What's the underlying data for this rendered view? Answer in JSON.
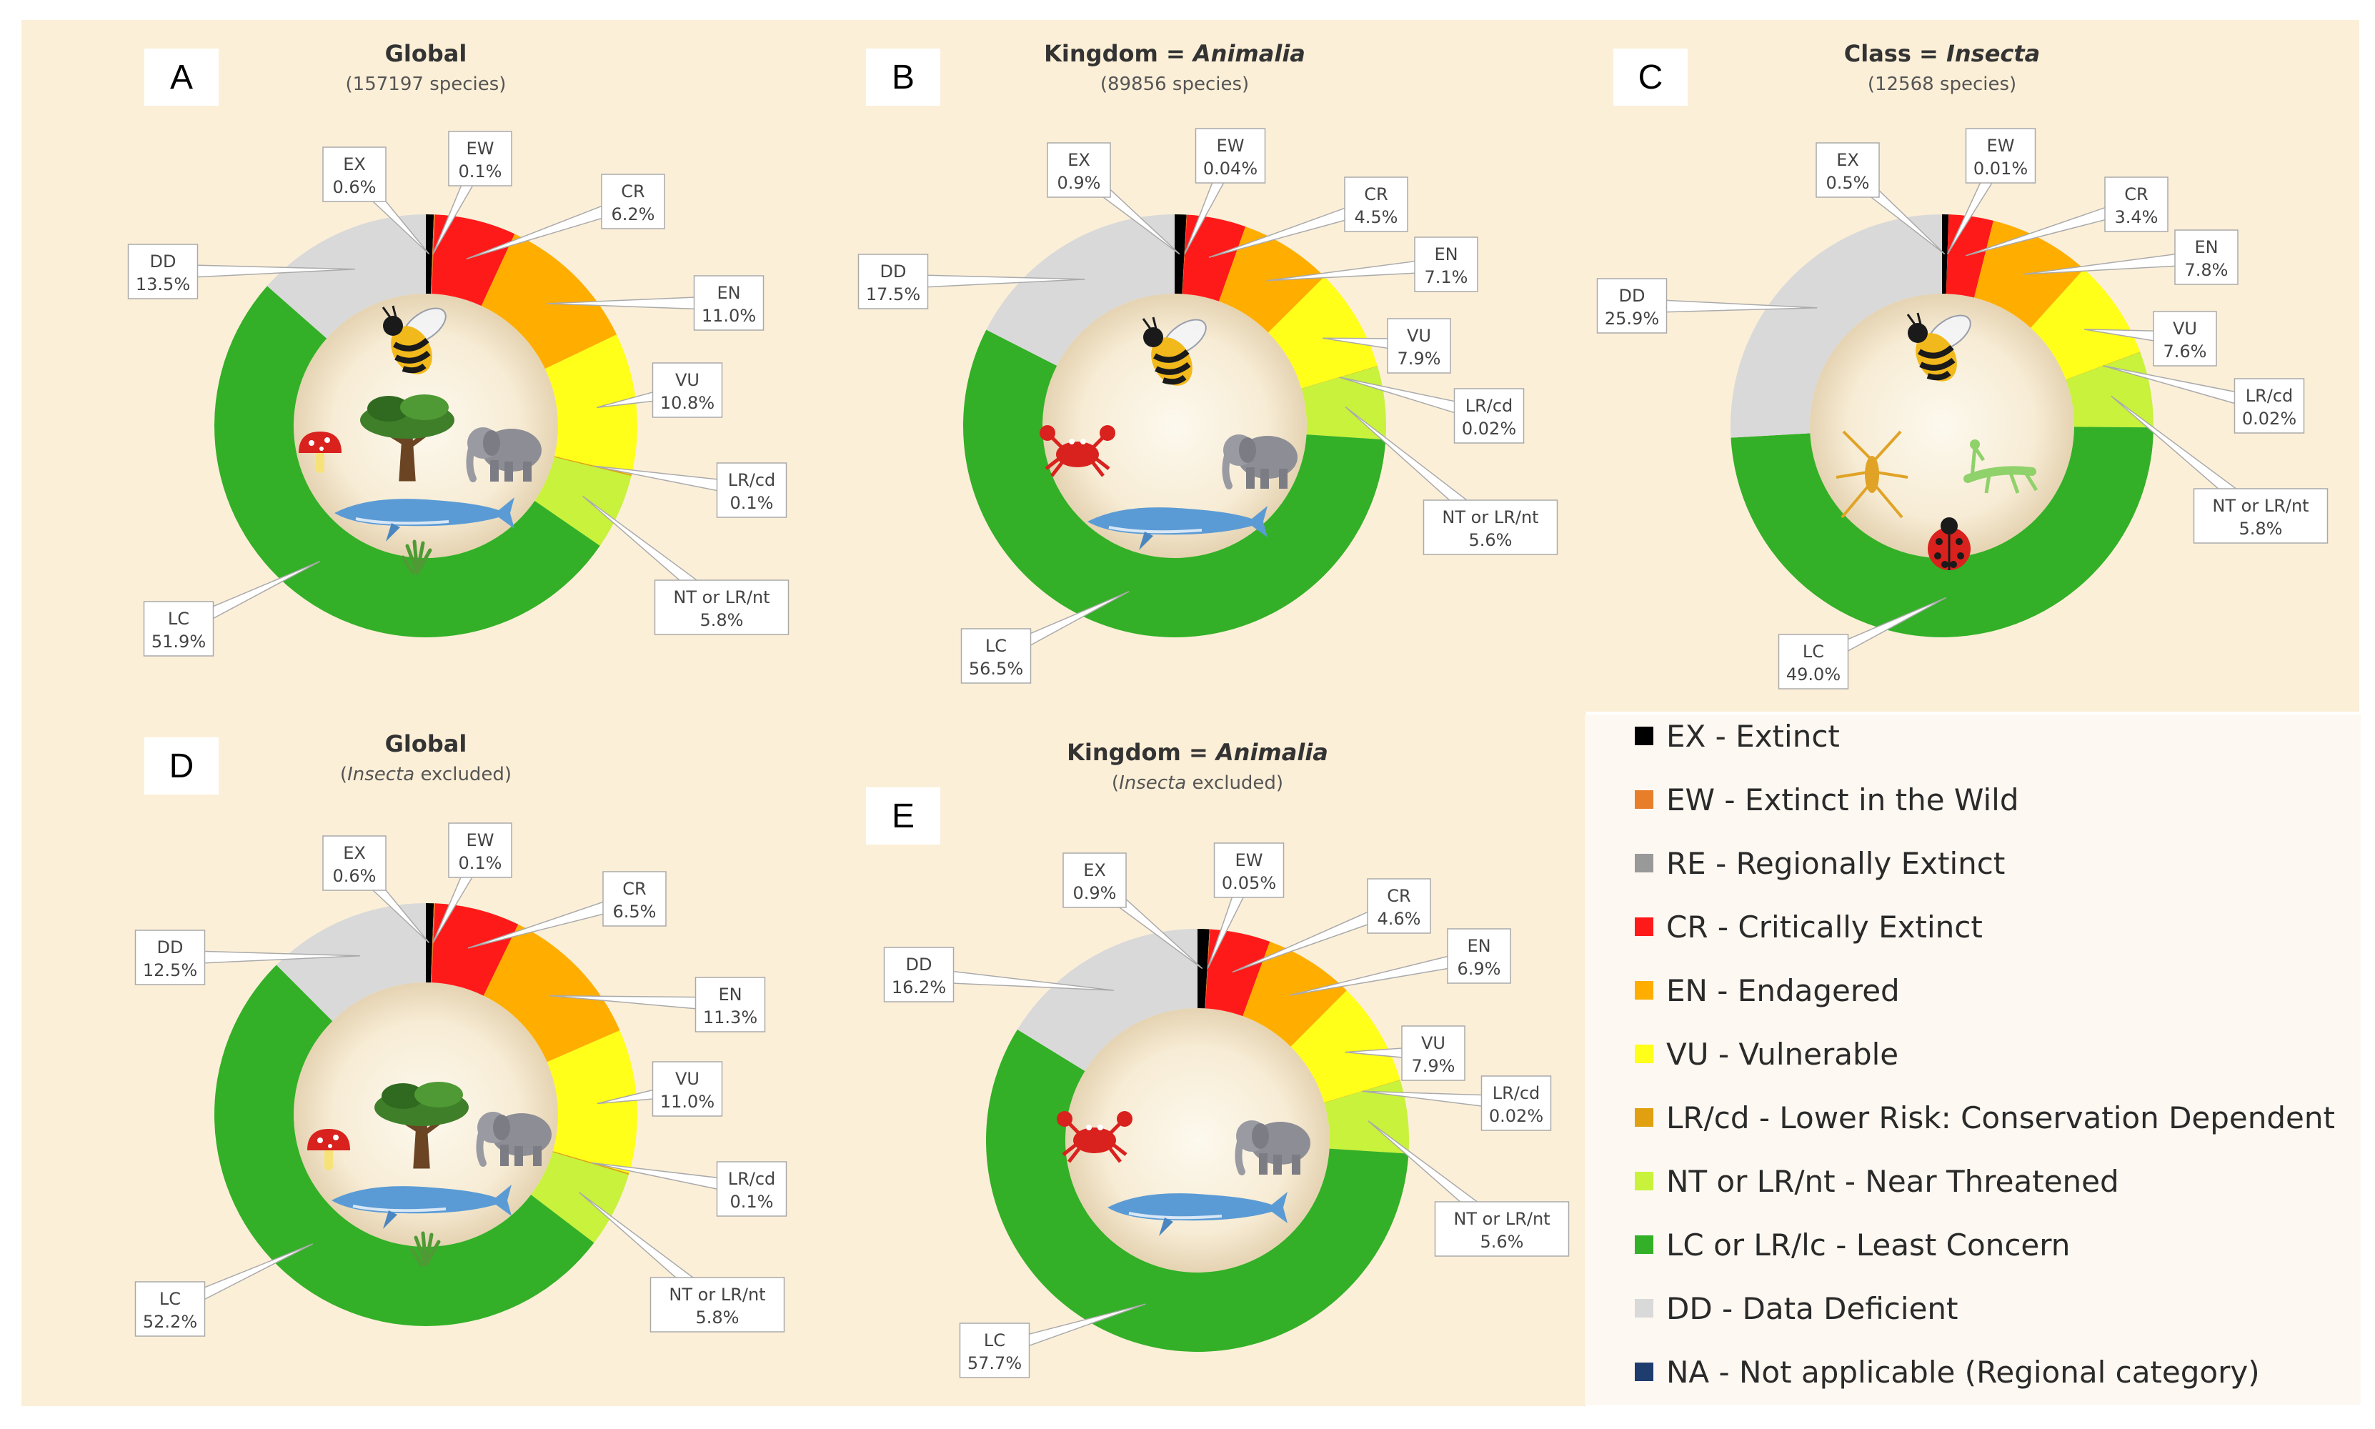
{
  "colors": {
    "EX": "#000000",
    "EW": "#e87e2a",
    "CR": "#ff1a1a",
    "EN": "#ffae00",
    "VU": "#ffff1a",
    "LRcd": "#e0a010",
    "NT": "#c8f23c",
    "LC": "#33b027",
    "DD": "#d9d9d9",
    "RE": "#999999",
    "NA": "#1f3c6e",
    "panel_bg": "#fcefd8"
  },
  "chart_data": [
    {
      "type": "donut",
      "panel_letter": "A",
      "title": "Global",
      "subtitle": "(157197 species)",
      "icons": [
        "bee-icon",
        "mushroom-icon",
        "tree-icon",
        "elephant-icon",
        "whale-icon",
        "grass-icon"
      ],
      "slices": [
        {
          "code": "EX",
          "label": "EX",
          "percent_text": "0.6%",
          "value": 0.6
        },
        {
          "code": "EW",
          "label": "EW",
          "percent_text": "0.1%",
          "value": 0.1
        },
        {
          "code": "CR",
          "label": "CR",
          "percent_text": "6.2%",
          "value": 6.2
        },
        {
          "code": "EN",
          "label": "EN",
          "percent_text": "11.0%",
          "value": 11.0
        },
        {
          "code": "VU",
          "label": "VU",
          "percent_text": "10.8%",
          "value": 10.8
        },
        {
          "code": "LRcd",
          "label": "LR/cd",
          "percent_text": "0.1%",
          "value": 0.1
        },
        {
          "code": "NT",
          "label": "NT or LR/nt",
          "percent_text": "5.8%",
          "value": 5.8
        },
        {
          "code": "LC",
          "label": "LC",
          "percent_text": "51.9%",
          "value": 51.9
        },
        {
          "code": "DD",
          "label": "DD",
          "percent_text": "13.5%",
          "value": 13.5
        }
      ]
    },
    {
      "type": "donut",
      "panel_letter": "B",
      "title": "Kingdom = ",
      "title_italic": "Animalia",
      "subtitle": "(89856 species)",
      "icons": [
        "bee-icon",
        "crab-icon",
        "elephant-icon",
        "whale-icon"
      ],
      "slices": [
        {
          "code": "EX",
          "label": "EX",
          "percent_text": "0.9%",
          "value": 0.9
        },
        {
          "code": "EW",
          "label": "EW",
          "percent_text": "0.04%",
          "value": 0.04
        },
        {
          "code": "CR",
          "label": "CR",
          "percent_text": "4.5%",
          "value": 4.5
        },
        {
          "code": "EN",
          "label": "EN",
          "percent_text": "7.1%",
          "value": 7.1
        },
        {
          "code": "VU",
          "label": "VU",
          "percent_text": "7.9%",
          "value": 7.9
        },
        {
          "code": "LRcd",
          "label": "LR/cd",
          "percent_text": "0.02%",
          "value": 0.02
        },
        {
          "code": "NT",
          "label": "NT or LR/nt",
          "percent_text": "5.6%",
          "value": 5.6
        },
        {
          "code": "LC",
          "label": "LC",
          "percent_text": "56.5%",
          "value": 56.5
        },
        {
          "code": "DD",
          "label": "DD",
          "percent_text": "17.5%",
          "value": 17.5
        }
      ]
    },
    {
      "type": "donut",
      "panel_letter": "C",
      "title": "Class = ",
      "title_italic": "Insecta",
      "subtitle": "(12568 species)",
      "icons": [
        "bee-icon",
        "spider-icon",
        "mantis-icon",
        "ladybug-icon"
      ],
      "slices": [
        {
          "code": "EX",
          "label": "EX",
          "percent_text": "0.5%",
          "value": 0.5
        },
        {
          "code": "EW",
          "label": "EW",
          "percent_text": "0.01%",
          "value": 0.01
        },
        {
          "code": "CR",
          "label": "CR",
          "percent_text": "3.4%",
          "value": 3.4
        },
        {
          "code": "EN",
          "label": "EN",
          "percent_text": "7.8%",
          "value": 7.8
        },
        {
          "code": "VU",
          "label": "VU",
          "percent_text": "7.6%",
          "value": 7.6
        },
        {
          "code": "LRcd",
          "label": "LR/cd",
          "percent_text": "0.02%",
          "value": 0.02
        },
        {
          "code": "NT",
          "label": "NT or LR/nt",
          "percent_text": "5.8%",
          "value": 5.8
        },
        {
          "code": "LC",
          "label": "LC",
          "percent_text": "49.0%",
          "value": 49.0
        },
        {
          "code": "DD",
          "label": "DD",
          "percent_text": "25.9%",
          "value": 25.9
        }
      ]
    },
    {
      "type": "donut",
      "panel_letter": "D",
      "title": "Global",
      "subtitle_italic": "Insecta",
      "subtitle_rest": " excluded",
      "icons": [
        "mushroom-icon",
        "tree-icon",
        "elephant-icon",
        "whale-icon",
        "grass-icon"
      ],
      "slices": [
        {
          "code": "EX",
          "label": "EX",
          "percent_text": "0.6%",
          "value": 0.6
        },
        {
          "code": "EW",
          "label": "EW",
          "percent_text": "0.1%",
          "value": 0.1
        },
        {
          "code": "CR",
          "label": "CR",
          "percent_text": "6.5%",
          "value": 6.5
        },
        {
          "code": "EN",
          "label": "EN",
          "percent_text": "11.3%",
          "value": 11.3
        },
        {
          "code": "VU",
          "label": "VU",
          "percent_text": "11.0%",
          "value": 11.0
        },
        {
          "code": "LRcd",
          "label": "LR/cd",
          "percent_text": "0.1%",
          "value": 0.1
        },
        {
          "code": "NT",
          "label": "NT or LR/nt",
          "percent_text": "5.8%",
          "value": 5.8
        },
        {
          "code": "LC",
          "label": "LC",
          "percent_text": "52.2%",
          "value": 52.2
        },
        {
          "code": "DD",
          "label": "DD",
          "percent_text": "12.5%",
          "value": 12.5
        }
      ]
    },
    {
      "type": "donut",
      "panel_letter": "E",
      "title": "Kingdom = ",
      "title_italic": "Animalia",
      "subtitle_italic": "Insecta",
      "subtitle_rest": " excluded",
      "icons": [
        "crab-icon",
        "elephant-icon",
        "whale-icon"
      ],
      "slices": [
        {
          "code": "EX",
          "label": "EX",
          "percent_text": "0.9%",
          "value": 0.9
        },
        {
          "code": "EW",
          "label": "EW",
          "percent_text": "0.05%",
          "value": 0.05
        },
        {
          "code": "CR",
          "label": "CR",
          "percent_text": "4.6%",
          "value": 4.6
        },
        {
          "code": "EN",
          "label": "EN",
          "percent_text": "6.9%",
          "value": 6.9
        },
        {
          "code": "VU",
          "label": "VU",
          "percent_text": "7.9%",
          "value": 7.9
        },
        {
          "code": "LRcd",
          "label": "LR/cd",
          "percent_text": "0.02%",
          "value": 0.02
        },
        {
          "code": "NT",
          "label": "NT or LR/nt",
          "percent_text": "5.6%",
          "value": 5.6
        },
        {
          "code": "LC",
          "label": "LC",
          "percent_text": "57.7%",
          "value": 57.7
        },
        {
          "code": "DD",
          "label": "DD",
          "percent_text": "16.2%",
          "value": 16.2
        }
      ]
    }
  ],
  "legend": [
    {
      "code": "EX",
      "label": "EX - Extinct"
    },
    {
      "code": "EW",
      "label": "EW - Extinct in the Wild"
    },
    {
      "code": "RE",
      "label": "RE - Regionally Extinct"
    },
    {
      "code": "CR",
      "label": "CR - Critically Extinct"
    },
    {
      "code": "EN",
      "label": "EN - Endagered"
    },
    {
      "code": "VU",
      "label": "VU - Vulnerable"
    },
    {
      "code": "LRcd",
      "label": "LR/cd - Lower Risk: Conservation Dependent"
    },
    {
      "code": "NT",
      "label": "NT or LR/nt - Near Threatened"
    },
    {
      "code": "LC",
      "label": "LC or LR/lc - Least Concern"
    },
    {
      "code": "DD",
      "label": "DD - Data Deficient"
    },
    {
      "code": "NA",
      "label": "NA - Not applicable (Regional category)"
    }
  ]
}
